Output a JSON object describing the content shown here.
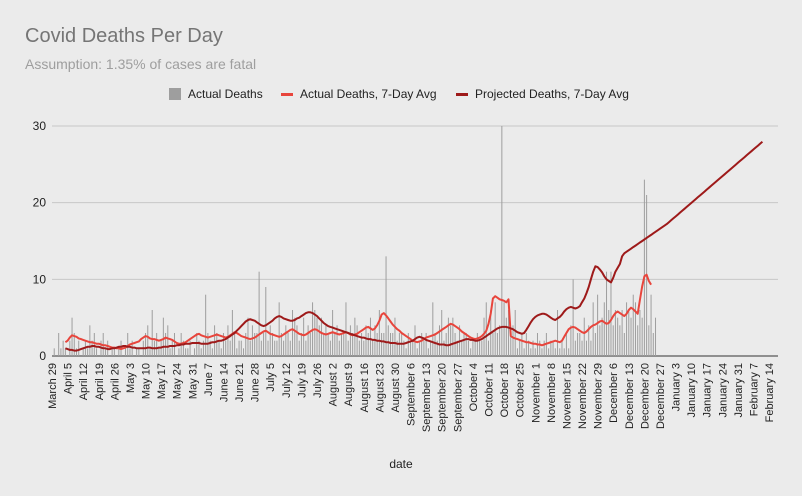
{
  "chart_data": {
    "type": "line",
    "title": "Covid Deaths Per Day",
    "subtitle": "Assumption: 1.35% of cases are fatal",
    "xlabel": "date",
    "ylabel": "",
    "ylim": [
      0,
      30
    ],
    "yticks": [
      0,
      10,
      20,
      30
    ],
    "grid": true,
    "legend_position": "top",
    "x_start": "2020-03-29",
    "x_end": "2021-02-18",
    "xtick_labels": [
      "March 29",
      "April 5",
      "April 12",
      "April 19",
      "April 26",
      "May 3",
      "May 10",
      "May 17",
      "May 24",
      "May 31",
      "June 7",
      "June 14",
      "June 21",
      "June 28",
      "July 5",
      "July 12",
      "July 19",
      "July 26",
      "August 2",
      "August 9",
      "August 16",
      "August 23",
      "August 30",
      "September 6",
      "September 13",
      "September 20",
      "September 27",
      "October 4",
      "October 11",
      "October 18",
      "October 25",
      "November 1",
      "November 8",
      "November 15",
      "November 22",
      "November 29",
      "December 6",
      "December 13",
      "December 20",
      "December 27",
      "January 3",
      "January 10",
      "January 17",
      "January 24",
      "January 31",
      "February 7",
      "February 14"
    ],
    "series": [
      {
        "name": "Actual Deaths",
        "kind": "bar",
        "color": "#9e9e9e",
        "start": "2020-03-30",
        "values": [
          1,
          0,
          3,
          1,
          2,
          1,
          0,
          2,
          5,
          3,
          1,
          2,
          0,
          1,
          2,
          1,
          4,
          2,
          3,
          1,
          0,
          2,
          3,
          1,
          2,
          0,
          1,
          1,
          0,
          1,
          2,
          0,
          1,
          3,
          1,
          2,
          0,
          1,
          1,
          0,
          2,
          3,
          4,
          1,
          6,
          2,
          3,
          1,
          2,
          5,
          3,
          4,
          1,
          2,
          3,
          0,
          1,
          3,
          2,
          1,
          1,
          2,
          0,
          1,
          3,
          2,
          1,
          2,
          8,
          3,
          2,
          1,
          4,
          3,
          2,
          1,
          3,
          2,
          4,
          2,
          6,
          3,
          1,
          2,
          2,
          1,
          3,
          5,
          2,
          4,
          3,
          3,
          11,
          2,
          3,
          9,
          2,
          4,
          3,
          2,
          2,
          7,
          3,
          2,
          4,
          3,
          2,
          6,
          5,
          4,
          2,
          3,
          5,
          2,
          4,
          3,
          7,
          6,
          5,
          4,
          5,
          3,
          4,
          3,
          2,
          6,
          3,
          4,
          2,
          3,
          3,
          7,
          2,
          4,
          3,
          5,
          4,
          2,
          3,
          2,
          4,
          3,
          5,
          2,
          4,
          3,
          6,
          3,
          3,
          13,
          4,
          3,
          3,
          5,
          2,
          3,
          3,
          2,
          1,
          3,
          2,
          2,
          4,
          1,
          2,
          3,
          2,
          3,
          1,
          2,
          7,
          3,
          2,
          4,
          6,
          2,
          3,
          5,
          4,
          5,
          3,
          2,
          4,
          2,
          3,
          3,
          2,
          1,
          2,
          2,
          3,
          2,
          2,
          5,
          7,
          2,
          6,
          3,
          7,
          3,
          4,
          30,
          7,
          5,
          6,
          3,
          4,
          6,
          1,
          2,
          3,
          1,
          3,
          2,
          1,
          2,
          1,
          3,
          2,
          1,
          2,
          3,
          1,
          2,
          2,
          1,
          6,
          1,
          2,
          1,
          3,
          1,
          4,
          10,
          2,
          3,
          3,
          2,
          5,
          2,
          4,
          2,
          7,
          3,
          8,
          4,
          5,
          7,
          11,
          6,
          11,
          4,
          6,
          5,
          4,
          6,
          3,
          7,
          6,
          5,
          8,
          7,
          4,
          6,
          5,
          23,
          21,
          4,
          8,
          3,
          5
        ]
      },
      {
        "name": "Actual Deaths, 7-Day Avg",
        "kind": "line",
        "color": "#e8453c",
        "start": "2020-04-04",
        "values": [
          1.8,
          2.0,
          2.4,
          2.7,
          2.6,
          2.5,
          2.3,
          2.2,
          2.1,
          2.0,
          1.9,
          1.8,
          1.8,
          1.7,
          1.6,
          1.6,
          1.5,
          1.4,
          1.4,
          1.3,
          1.2,
          1.1,
          1.1,
          1.0,
          1.0,
          0.9,
          1.0,
          1.1,
          1.3,
          1.5,
          1.6,
          1.7,
          1.8,
          1.9,
          2.2,
          2.4,
          2.6,
          2.5,
          2.3,
          2.2,
          2.2,
          2.1,
          2.0,
          2.1,
          2.2,
          2.4,
          2.3,
          2.2,
          2.1,
          1.9,
          1.7,
          1.6,
          1.6,
          1.7,
          1.8,
          2.0,
          2.2,
          2.4,
          2.6,
          2.8,
          2.9,
          2.7,
          2.6,
          2.5,
          2.4,
          2.5,
          2.6,
          2.7,
          2.8,
          2.7,
          2.6,
          2.5,
          2.4,
          2.5,
          2.7,
          2.9,
          3.1,
          3.0,
          2.8,
          2.6,
          2.5,
          2.4,
          2.3,
          2.2,
          2.3,
          2.4,
          2.6,
          2.8,
          3.0,
          3.2,
          3.3,
          3.1,
          2.9,
          2.8,
          2.7,
          2.6,
          2.5,
          2.6,
          2.8,
          3.0,
          3.2,
          3.4,
          3.5,
          3.3,
          3.1,
          2.9,
          2.8,
          2.7,
          2.8,
          3.0,
          3.2,
          3.4,
          3.5,
          3.4,
          3.2,
          3.0,
          2.9,
          2.8,
          2.9,
          3.0,
          3.1,
          3.0,
          2.9,
          2.8,
          2.9,
          3.0,
          3.1,
          3.0,
          2.8,
          2.7,
          2.8,
          2.9,
          3.1,
          3.3,
          3.5,
          3.7,
          3.8,
          3.6,
          3.4,
          3.6,
          4.0,
          4.6,
          5.4,
          5.6,
          5.3,
          4.9,
          4.5,
          4.1,
          3.8,
          3.5,
          3.3,
          3.0,
          2.8,
          2.6,
          2.4,
          2.2,
          2.0,
          1.9,
          1.8,
          1.9,
          2.0,
          2.2,
          2.4,
          2.5,
          2.6,
          2.7,
          2.8,
          3.0,
          3.2,
          3.4,
          3.6,
          3.8,
          4.0,
          4.2,
          4.1,
          3.9,
          3.7,
          3.5,
          3.2,
          3.0,
          2.8,
          2.6,
          2.4,
          2.3,
          2.2,
          2.3,
          2.4,
          2.6,
          2.9,
          3.3,
          4.2,
          5.5,
          7.5,
          7.8,
          7.6,
          7.4,
          7.3,
          7.2,
          7.0,
          7.4,
          2.6,
          2.4,
          2.3,
          2.2,
          2.1,
          2.0,
          1.9,
          1.8,
          1.8,
          1.7,
          1.6,
          1.6,
          1.5,
          1.5,
          1.4,
          1.5,
          1.6,
          1.7,
          1.8,
          1.9,
          2.0,
          1.9,
          1.8,
          2.0,
          2.5,
          3.0,
          3.5,
          3.7,
          3.8,
          3.7,
          3.5,
          3.3,
          3.1,
          3.0,
          3.2,
          3.5,
          3.8,
          4.0,
          4.1,
          4.3,
          4.5,
          4.6,
          4.4,
          4.2,
          4.3,
          4.7,
          5.2,
          5.6,
          5.8,
          5.6,
          5.4,
          5.2,
          5.5,
          6.0,
          6.3,
          6.1,
          5.8,
          5.5,
          7.3,
          9.1,
          10.4,
          10.6,
          9.8,
          9.3
        ]
      },
      {
        "name": "Projected Deaths, 7-Day Avg",
        "kind": "line",
        "color": "#9e1a1a",
        "start": "2020-04-04",
        "values": [
          1.0,
          0.9,
          0.8,
          0.8,
          0.7,
          0.7,
          0.8,
          0.9,
          1.0,
          1.1,
          1.2,
          1.2,
          1.3,
          1.3,
          1.2,
          1.2,
          1.1,
          1.0,
          1.0,
          0.9,
          0.9,
          1.0,
          1.0,
          1.1,
          1.2,
          1.2,
          1.3,
          1.3,
          1.2,
          1.2,
          1.1,
          1.1,
          1.0,
          1.0,
          1.0,
          1.0,
          1.0,
          1.1,
          1.1,
          1.0,
          1.0,
          1.0,
          1.1,
          1.1,
          1.2,
          1.2,
          1.2,
          1.3,
          1.3,
          1.3,
          1.4,
          1.4,
          1.5,
          1.5,
          1.6,
          1.6,
          1.6,
          1.7,
          1.7,
          1.7,
          1.7,
          1.6,
          1.6,
          1.6,
          1.6,
          1.7,
          1.8,
          1.8,
          1.9,
          2.0,
          2.0,
          2.1,
          2.2,
          2.4,
          2.6,
          2.8,
          3.0,
          3.3,
          3.6,
          3.9,
          4.2,
          4.5,
          4.7,
          4.8,
          4.7,
          4.6,
          4.4,
          4.2,
          4.0,
          3.9,
          4.0,
          4.2,
          4.4,
          4.6,
          4.9,
          5.1,
          5.2,
          5.1,
          4.9,
          4.8,
          4.7,
          4.6,
          4.6,
          4.7,
          4.9,
          5.0,
          5.2,
          5.4,
          5.6,
          5.7,
          5.7,
          5.6,
          5.4,
          5.2,
          4.9,
          4.6,
          4.3,
          4.1,
          3.9,
          3.8,
          3.7,
          3.6,
          3.5,
          3.4,
          3.3,
          3.2,
          3.1,
          3.0,
          2.9,
          2.8,
          2.7,
          2.6,
          2.5,
          2.4,
          2.4,
          2.3,
          2.2,
          2.2,
          2.1,
          2.1,
          2.0,
          2.0,
          1.9,
          1.9,
          1.8,
          1.8,
          1.7,
          1.7,
          1.7,
          1.6,
          1.6,
          1.6,
          1.6,
          1.7,
          1.8,
          1.9,
          2.0,
          2.2,
          2.4,
          2.5,
          2.4,
          2.3,
          2.1,
          2.0,
          1.9,
          1.8,
          1.7,
          1.6,
          1.5,
          1.5,
          1.5,
          1.4,
          1.4,
          1.5,
          1.6,
          1.7,
          1.8,
          1.9,
          2.0,
          2.1,
          2.2,
          2.2,
          2.1,
          2.1,
          2.0,
          2.0,
          2.1,
          2.2,
          2.4,
          2.6,
          2.8,
          3.0,
          3.2,
          3.4,
          3.6,
          3.7,
          3.8,
          3.8,
          3.8,
          3.7,
          3.6,
          3.5,
          3.3,
          3.1,
          3.0,
          2.9,
          3.0,
          3.4,
          3.9,
          4.4,
          4.8,
          5.1,
          5.3,
          5.4,
          5.5,
          5.5,
          5.4,
          5.2,
          5.0,
          4.8,
          4.7,
          4.9,
          5.1,
          5.4,
          5.8,
          6.1,
          6.3,
          6.4,
          6.3,
          6.2,
          6.3,
          6.5,
          7.0,
          7.5,
          8.2,
          9.0,
          10.0,
          11.0,
          11.7,
          11.6,
          11.3,
          10.9,
          10.4,
          10.0,
          9.8,
          9.6,
          10.2,
          11.0,
          11.5,
          12.0,
          13.0,
          13.4,
          13.6,
          13.8,
          14.0,
          14.2,
          14.4,
          14.6,
          14.8,
          15.0,
          15.2,
          15.4,
          15.6,
          15.8,
          16.0,
          16.2,
          16.4,
          16.6,
          16.8,
          17.0,
          17.2,
          17.45,
          17.7,
          17.95,
          18.2,
          18.45,
          18.7,
          18.95,
          19.2,
          19.45,
          19.7,
          19.95,
          20.2,
          20.45,
          20.7,
          20.95,
          21.2,
          21.45,
          21.7,
          21.95,
          22.2,
          22.45,
          22.7,
          22.95,
          23.2,
          23.45,
          23.7,
          23.95,
          24.2,
          24.45,
          24.7,
          24.95,
          25.2,
          25.45,
          25.7,
          25.95,
          26.2,
          26.45,
          26.7,
          26.95,
          27.2,
          27.45,
          27.7,
          27.95
        ]
      }
    ]
  }
}
